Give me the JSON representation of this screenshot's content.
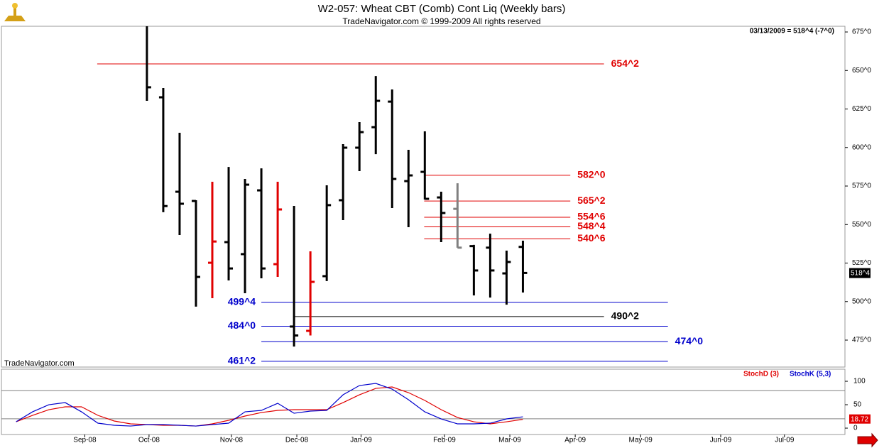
{
  "header": {
    "title": "W2-057:  Wheat CBT (Comb) Cont Liq  (Weekly bars)",
    "subtitle": "TradeNavigator.com © 1999-2009 All rights reserved",
    "info": "03/13/2009 = 518^4 (-7^0)",
    "watermark": "TradeNavigator.com"
  },
  "chart_data": [
    {
      "type": "ohlc",
      "xlim": [
        -8.9,
        42.7
      ],
      "ylim": [
        457.5,
        678.7
      ],
      "yticks": [
        {
          "value": 475,
          "label": "475^0"
        },
        {
          "value": 500,
          "label": "500^0"
        },
        {
          "value": 525,
          "label": "525^0"
        },
        {
          "value": 550,
          "label": "550^0"
        },
        {
          "value": 575,
          "label": "575^0"
        },
        {
          "value": 600,
          "label": "600^0"
        },
        {
          "value": 625,
          "label": "625^0"
        },
        {
          "value": 650,
          "label": "650^0"
        },
        {
          "value": 675,
          "label": "675^0"
        }
      ],
      "x": [
        0,
        1,
        2,
        3,
        4,
        5,
        6,
        7,
        8,
        9,
        10,
        11,
        12,
        13,
        14,
        15,
        16,
        17,
        18,
        19,
        20,
        21,
        22,
        23
      ],
      "open": [
        null,
        632.6,
        571.3,
        565.3,
        525.2,
        538.6,
        530.8,
        572.2,
        524.3,
        483.8,
        481,
        516.5,
        565.8,
        599.9,
        613.2,
        629.8,
        578.2,
        584.2,
        567.6,
        560.2,
        536,
        535,
        518.3,
        535.5
      ],
      "high": [
        683,
        638.6,
        609.6,
        565.8,
        577.8,
        587.4,
        579.6,
        586.5,
        577.8,
        562.1,
        532.6,
        575.5,
        602.2,
        616.5,
        646.4,
        637.7,
        598.5,
        610.5,
        571.3,
        576.8,
        536.8,
        544.1,
        533.1,
        539.5
      ],
      "low": [
        630.3,
        558,
        543.2,
        496.7,
        502.2,
        513.7,
        505.4,
        515.1,
        516,
        470.8,
        478,
        513.3,
        552.9,
        584.7,
        595.7,
        560.7,
        548.3,
        566.2,
        538.6,
        535,
        504,
        502.6,
        498,
        505.9
      ],
      "close": [
        639.1,
        562,
        563.5,
        516,
        539,
        521.5,
        575.9,
        521.5,
        559.8,
        478,
        512.8,
        562.6,
        599.9,
        610,
        630.3,
        579.6,
        581.9,
        566.7,
        557.5,
        535,
        520.2,
        520.2,
        525.7,
        518.6
      ],
      "colors": [
        "#000000",
        "#000000",
        "#000000",
        "#000000",
        "#e00000",
        "#000000",
        "#000000",
        "#000000",
        "#e00000",
        "#000000",
        "#e00000",
        "#000000",
        "#000000",
        "#000000",
        "#000000",
        "#000000",
        "#000000",
        "#000000",
        "#000000",
        "#808080",
        "#000000",
        "#000000",
        "#000000",
        "#000000"
      ],
      "last_label": {
        "value": 518.5,
        "label": "518^4"
      },
      "levels": [
        {
          "value": 654.25,
          "label": "654^2",
          "color": "#e00000",
          "x": [
            -3.04,
            27.96
          ],
          "side": "right"
        },
        {
          "value": 582,
          "label": "582^0",
          "color": "#e00000",
          "x": [
            16.96,
            25.9
          ],
          "side": "right"
        },
        {
          "value": 565.25,
          "label": "565^2",
          "color": "#e00000",
          "x": [
            16.96,
            25.9
          ],
          "side": "right"
        },
        {
          "value": 554.75,
          "label": "554^6",
          "color": "#e00000",
          "x": [
            16.96,
            25.9
          ],
          "side": "right"
        },
        {
          "value": 548.5,
          "label": "548^4",
          "color": "#e00000",
          "x": [
            16.96,
            25.9
          ],
          "side": "right"
        },
        {
          "value": 540.75,
          "label": "540^6",
          "color": "#e00000",
          "x": [
            16.96,
            25.9
          ],
          "side": "right"
        },
        {
          "value": 499.5,
          "label": "499^4",
          "color": "#0000cc",
          "x": [
            7.0,
            31.87
          ],
          "side": "left"
        },
        {
          "value": 490.25,
          "label": "490^2",
          "color": "#000000",
          "x": [
            9.04,
            27.96
          ],
          "side": "right"
        },
        {
          "value": 484,
          "label": "484^0",
          "color": "#0000cc",
          "x": [
            7.0,
            31.87
          ],
          "side": "left"
        },
        {
          "value": 474,
          "label": "474^0",
          "color": "#0000cc",
          "x": [
            7.0,
            31.87
          ],
          "side": "right"
        },
        {
          "value": 461.25,
          "label": "461^2",
          "color": "#0000cc",
          "x": [
            7.0,
            31.87
          ],
          "side": "left"
        }
      ]
    },
    {
      "type": "line",
      "xlim": [
        -8.9,
        42.7
      ],
      "ylim": [
        -13.6,
        125.8
      ],
      "yticks": [
        0,
        50,
        100
      ],
      "hlines": [
        20,
        80
      ],
      "xticks": [
        {
          "value": -3.8,
          "label": "Sep-08"
        },
        {
          "value": 0.13,
          "label": "Oct-08"
        },
        {
          "value": 5.17,
          "label": "Nov-08"
        },
        {
          "value": 9.17,
          "label": "Dec-08"
        },
        {
          "value": 13.1,
          "label": "Jan-09"
        },
        {
          "value": 18.2,
          "label": "Feb-09"
        },
        {
          "value": 22.2,
          "label": "Mar-09"
        },
        {
          "value": 26.2,
          "label": "Apr-09"
        },
        {
          "value": 30.2,
          "label": "May-09"
        },
        {
          "value": 35.1,
          "label": "Jun-09"
        },
        {
          "value": 39.0,
          "label": "Jul-09"
        }
      ],
      "x": [
        -8,
        -7,
        -6,
        -5,
        -4,
        -3,
        -2,
        -1,
        0,
        1,
        2,
        3,
        4,
        5,
        6,
        7,
        8,
        9,
        10,
        11,
        12,
        13,
        14,
        15,
        16,
        17,
        18,
        19,
        20,
        21,
        22,
        23
      ],
      "series": [
        {
          "name": "StochD (3)",
          "color": "#e00000",
          "values": [
            13.6,
            27.3,
            39.4,
            45.5,
            45.5,
            27.3,
            15.2,
            9.1,
            7.6,
            6.1,
            6.1,
            4.5,
            9.1,
            16.7,
            25.8,
            33.3,
            37.9,
            39.4,
            39.4,
            39.4,
            54.5,
            71.2,
            84.8,
            87.9,
            75.8,
            59.1,
            39.4,
            22.7,
            13.6,
            9.1,
            13.6,
            18.72
          ],
          "last_label": "18.72"
        },
        {
          "name": "StochK (5,3)",
          "color": "#0000cc",
          "values": [
            13.6,
            34.8,
            50,
            54.5,
            34.8,
            10.6,
            6.1,
            4.5,
            7.6,
            7.6,
            6.1,
            4.5,
            7.6,
            10.6,
            34.8,
            37.9,
            53,
            31.8,
            36.4,
            37.9,
            71.2,
            90.9,
            95.5,
            83.3,
            60.6,
            34.8,
            19.7,
            9.1,
            9.1,
            10.6,
            19.7,
            24.2
          ]
        }
      ]
    }
  ]
}
